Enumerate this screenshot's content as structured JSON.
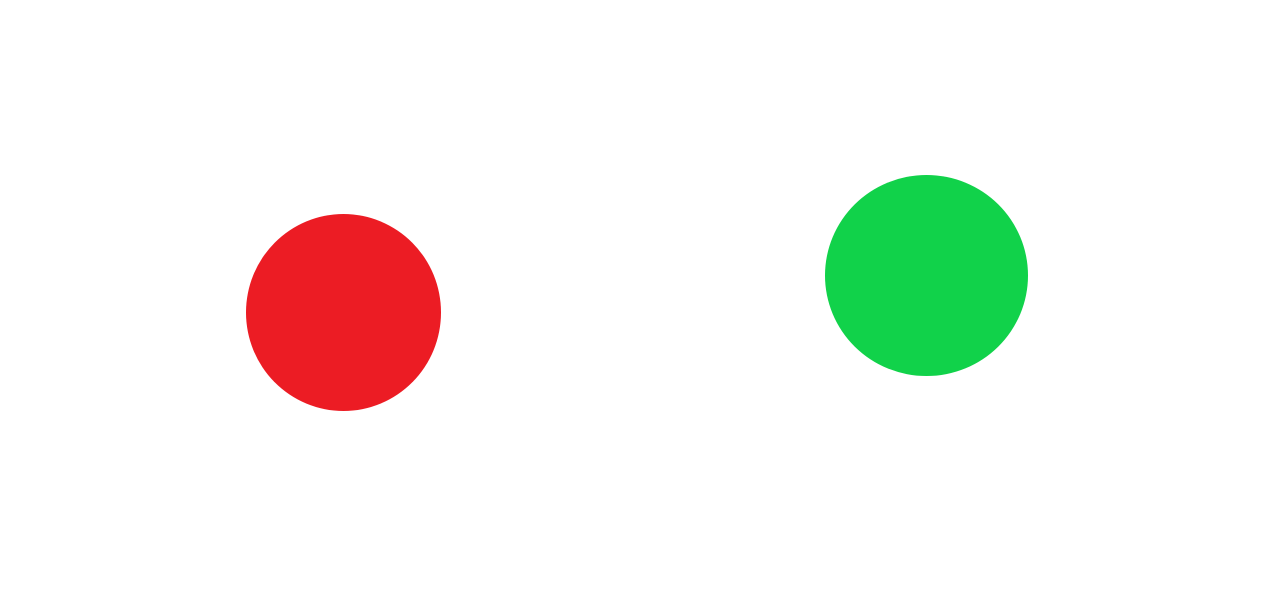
{
  "canvas": {
    "background_color": "#ffffff"
  },
  "shapes": [
    {
      "kind": "circle",
      "color": "#ec1c24"
    },
    {
      "kind": "circle",
      "color": "#11d24a"
    }
  ]
}
